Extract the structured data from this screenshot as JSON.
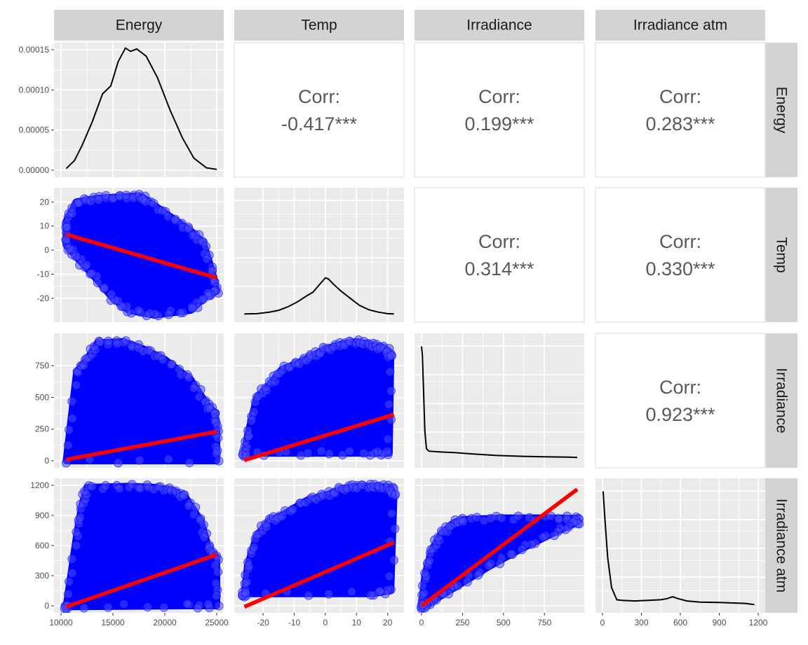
{
  "chart_data": {
    "type": "scatter",
    "variables": [
      "Energy",
      "Temp",
      "Irradiance",
      "Irradiance atm"
    ],
    "axes": {
      "Energy": {
        "lim": [
          10000,
          25000
        ],
        "ticks": [
          "10000",
          "15000",
          "20000",
          "25000"
        ]
      },
      "Temp": {
        "lim": [
          -27,
          23
        ],
        "ticks": [
          "-20",
          "-10",
          "0",
          "10",
          "20"
        ]
      },
      "Irradiance": {
        "lim": [
          0,
          950
        ],
        "ticks": [
          "0",
          "250",
          "500",
          "750"
        ]
      },
      "Irradiance atm": {
        "lim": [
          0,
          1200
        ],
        "ticks": [
          "0",
          "300",
          "600",
          "900",
          "1200"
        ]
      }
    },
    "density_axis": {
      "lim": [
        0,
        0.00015
      ],
      "ticks": [
        "0.00000",
        "0.00005",
        "0.00010",
        "0.00015"
      ]
    },
    "density_curves": {
      "Energy": [
        [
          10500,
          2e-06
        ],
        [
          11300,
          1.2e-05
        ],
        [
          12000,
          3e-05
        ],
        [
          13000,
          6e-05
        ],
        [
          14000,
          9.5e-05
        ],
        [
          14800,
          0.000105
        ],
        [
          15500,
          0.000135
        ],
        [
          16200,
          0.000152
        ],
        [
          16700,
          0.000148
        ],
        [
          17300,
          0.000151
        ],
        [
          18200,
          0.000142
        ],
        [
          19300,
          0.000115
        ],
        [
          20500,
          7.5e-05
        ],
        [
          21700,
          4e-05
        ],
        [
          22800,
          1.5e-05
        ],
        [
          24000,
          3e-06
        ],
        [
          25000,
          1e-06
        ]
      ],
      "Temp": [
        [
          -26,
          0.01
        ],
        [
          -22,
          0.012
        ],
        [
          -18,
          0.025
        ],
        [
          -15,
          0.04
        ],
        [
          -12,
          0.07
        ],
        [
          -9,
          0.11
        ],
        [
          -6,
          0.16
        ],
        [
          -4,
          0.19
        ],
        [
          -2,
          0.25
        ],
        [
          0,
          0.31
        ],
        [
          1,
          0.3
        ],
        [
          2.5,
          0.26
        ],
        [
          5,
          0.2
        ],
        [
          8,
          0.14
        ],
        [
          11,
          0.08
        ],
        [
          14,
          0.045
        ],
        [
          17,
          0.025
        ],
        [
          20,
          0.012
        ],
        [
          22,
          0.01
        ]
      ],
      "Irradiance": [
        [
          0,
          0.95
        ],
        [
          5,
          0.88
        ],
        [
          12,
          0.6
        ],
        [
          20,
          0.25
        ],
        [
          30,
          0.1
        ],
        [
          45,
          0.08
        ],
        [
          100,
          0.075
        ],
        [
          200,
          0.068
        ],
        [
          300,
          0.058
        ],
        [
          450,
          0.045
        ],
        [
          600,
          0.038
        ],
        [
          750,
          0.033
        ],
        [
          900,
          0.03
        ],
        [
          950,
          0.028
        ]
      ],
      "Irradiance atm": [
        [
          5,
          0.95
        ],
        [
          20,
          0.7
        ],
        [
          40,
          0.4
        ],
        [
          70,
          0.15
        ],
        [
          110,
          0.05
        ],
        [
          150,
          0.045
        ],
        [
          250,
          0.04
        ],
        [
          350,
          0.045
        ],
        [
          450,
          0.05
        ],
        [
          500,
          0.06
        ],
        [
          540,
          0.075
        ],
        [
          580,
          0.06
        ],
        [
          650,
          0.04
        ],
        [
          750,
          0.03
        ],
        [
          900,
          0.028
        ],
        [
          1100,
          0.02
        ],
        [
          1170,
          0.01
        ]
      ]
    },
    "correlations": [
      {
        "row": "Energy",
        "col": "Temp",
        "label": "Corr:",
        "value": "-0.417***"
      },
      {
        "row": "Energy",
        "col": "Irradiance",
        "label": "Corr:",
        "value": "0.199***"
      },
      {
        "row": "Energy",
        "col": "Irradiance atm",
        "label": "Corr:",
        "value": "0.283***"
      },
      {
        "row": "Temp",
        "col": "Irradiance",
        "label": "Corr:",
        "value": "0.314***"
      },
      {
        "row": "Temp",
        "col": "Irradiance atm",
        "label": "Corr:",
        "value": "0.330***"
      },
      {
        "row": "Irradiance",
        "col": "Irradiance atm",
        "label": "Corr:",
        "value": "0.923***"
      }
    ],
    "scatter_fits": [
      {
        "x": "Energy",
        "y": "Temp",
        "line": [
          [
            10500,
            6.5
          ],
          [
            25000,
            -11.5
          ]
        ]
      },
      {
        "x": "Energy",
        "y": "Irradiance",
        "line": [
          [
            10500,
            10
          ],
          [
            25000,
            230
          ]
        ]
      },
      {
        "x": "Temp",
        "y": "Irradiance",
        "line": [
          [
            -26,
            5
          ],
          [
            22,
            365
          ]
        ]
      },
      {
        "x": "Energy",
        "y": "Irradiance atm",
        "line": [
          [
            10500,
            -10
          ],
          [
            25000,
            510
          ]
        ]
      },
      {
        "x": "Temp",
        "y": "Irradiance atm",
        "line": [
          [
            -26,
            -10
          ],
          [
            22,
            630
          ]
        ]
      },
      {
        "x": "Irradiance",
        "y": "Irradiance atm",
        "line": [
          [
            0,
            0
          ],
          [
            950,
            1160
          ]
        ]
      }
    ],
    "scatter_envelopes": [
      {
        "x": "Energy",
        "y": "Temp",
        "polygon": [
          [
            10500,
            12
          ],
          [
            11500,
            20
          ],
          [
            13500,
            21.5
          ],
          [
            15500,
            22
          ],
          [
            17500,
            22.5
          ],
          [
            18200,
            21
          ],
          [
            20500,
            14
          ],
          [
            22500,
            8
          ],
          [
            23700,
            3
          ],
          [
            24500,
            -8
          ],
          [
            25000,
            -17
          ],
          [
            24000,
            -19
          ],
          [
            22500,
            -25
          ],
          [
            19000,
            -27
          ],
          [
            16500,
            -25
          ],
          [
            15000,
            -20
          ],
          [
            13000,
            -10
          ],
          [
            11500,
            -3
          ],
          [
            10500,
            2
          ]
        ]
      },
      {
        "x": "Energy",
        "y": "Irradiance",
        "polygon": [
          [
            10500,
            0
          ],
          [
            11500,
            700
          ],
          [
            12500,
            800
          ],
          [
            13500,
            930
          ],
          [
            16000,
            940
          ],
          [
            18000,
            880
          ],
          [
            20000,
            800
          ],
          [
            22500,
            640
          ],
          [
            24000,
            450
          ],
          [
            24800,
            380
          ],
          [
            25000,
            250
          ],
          [
            25000,
            0
          ]
        ]
      },
      {
        "x": "Temp",
        "y": "Irradiance",
        "polygon": [
          [
            -26,
            50
          ],
          [
            -25,
            200
          ],
          [
            -22,
            500
          ],
          [
            -18,
            600
          ],
          [
            -14,
            720
          ],
          [
            -8,
            780
          ],
          [
            -4,
            830
          ],
          [
            0,
            880
          ],
          [
            5,
            920
          ],
          [
            10,
            940
          ],
          [
            14,
            920
          ],
          [
            17,
            900
          ],
          [
            20,
            870
          ],
          [
            21,
            820
          ],
          [
            20.5,
            60
          ],
          [
            15,
            60
          ],
          [
            -5,
            60
          ],
          [
            -26,
            60
          ]
        ]
      },
      {
        "x": "Energy",
        "y": "Irradiance atm",
        "polygon": [
          [
            10500,
            -10
          ],
          [
            11500,
            700
          ],
          [
            12000,
            1000
          ],
          [
            12500,
            1180
          ],
          [
            16500,
            1190
          ],
          [
            19000,
            1180
          ],
          [
            20800,
            1150
          ],
          [
            22000,
            1080
          ],
          [
            23500,
            840
          ],
          [
            24200,
            580
          ],
          [
            25000,
            480
          ],
          [
            25000,
            0
          ],
          [
            22000,
            0
          ],
          [
            10500,
            -10
          ]
        ]
      },
      {
        "x": "Temp",
        "y": "Irradiance atm",
        "polygon": [
          [
            -26,
            110
          ],
          [
            -25,
            400
          ],
          [
            -22,
            700
          ],
          [
            -18,
            850
          ],
          [
            -14,
            900
          ],
          [
            -6,
            1050
          ],
          [
            0,
            1100
          ],
          [
            5,
            1160
          ],
          [
            9,
            1190
          ],
          [
            14,
            1190
          ],
          [
            17,
            1190
          ],
          [
            21,
            1180
          ],
          [
            22,
            1090
          ],
          [
            21,
            150
          ],
          [
            15,
            120
          ],
          [
            -26,
            120
          ]
        ]
      },
      {
        "x": "Irradiance",
        "y": "Irradiance atm",
        "polygon": [
          [
            0,
            -10
          ],
          [
            20,
            300
          ],
          [
            60,
            550
          ],
          [
            120,
            720
          ],
          [
            200,
            830
          ],
          [
            260,
            860
          ],
          [
            500,
            875
          ],
          [
            800,
            875
          ],
          [
            950,
            870
          ],
          [
            950,
            830
          ],
          [
            800,
            720
          ],
          [
            600,
            560
          ],
          [
            400,
            380
          ],
          [
            200,
            180
          ],
          [
            80,
            60
          ],
          [
            20,
            0
          ]
        ]
      }
    ]
  }
}
